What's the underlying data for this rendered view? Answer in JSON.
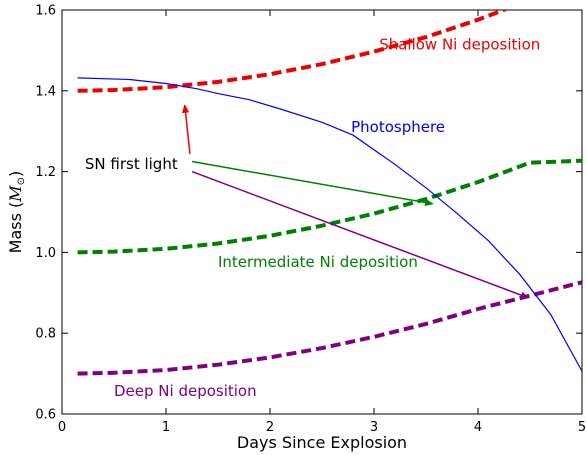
{
  "chart_data": {
    "type": "line",
    "xlabel": "Days Since Explosion",
    "ylabel_main": "Mass (",
    "ylabel_symbol": "M",
    "ylabel_sub": "⊙",
    "ylabel_close": ")",
    "xlim": [
      0,
      5
    ],
    "ylim": [
      0.6,
      1.6
    ],
    "x_ticks": [
      0,
      1,
      2,
      3,
      4,
      5
    ],
    "y_ticks": [
      0.6,
      0.8,
      1.0,
      1.2,
      1.4,
      1.6
    ],
    "x_tick_labels": [
      "0",
      "1",
      "2",
      "3",
      "4",
      "5"
    ],
    "y_tick_labels": [
      "0.6",
      "0.8",
      "1.0",
      "1.2",
      "1.4",
      "1.6"
    ],
    "grid": false,
    "series": [
      {
        "id": "shallow",
        "style": "dashed",
        "color": "#ee0000",
        "x": [
          0.15,
          0.5,
          1.0,
          1.5,
          2.0,
          2.5,
          3.0,
          3.5,
          4.0,
          4.5,
          5.0
        ],
        "y": [
          1.4,
          1.402,
          1.409,
          1.422,
          1.441,
          1.466,
          1.497,
          1.533,
          1.576,
          1.625,
          1.68
        ]
      },
      {
        "id": "intermediate",
        "style": "dashed",
        "color": "#008000",
        "x": [
          0.15,
          0.5,
          1.0,
          1.5,
          2.0,
          2.5,
          3.0,
          3.5,
          4.0,
          4.5,
          5.0
        ],
        "y": [
          1.0,
          1.002,
          1.009,
          1.022,
          1.041,
          1.066,
          1.096,
          1.132,
          1.174,
          1.222,
          1.227
        ]
      },
      {
        "id": "deep",
        "style": "dashed",
        "color": "#800080",
        "x": [
          0.15,
          0.5,
          1.0,
          1.5,
          2.0,
          2.5,
          3.0,
          3.5,
          4.0,
          4.5,
          5.0
        ],
        "y": [
          0.7,
          0.702,
          0.709,
          0.722,
          0.74,
          0.763,
          0.791,
          0.823,
          0.86,
          0.893,
          0.926
        ]
      },
      {
        "id": "photosphere",
        "style": "solid",
        "color": "#0000ff",
        "x": [
          0.15,
          0.65,
          1.0,
          1.3,
          1.5,
          1.8,
          2.1,
          2.5,
          2.8,
          3.2,
          3.5,
          3.8,
          4.1,
          4.4,
          4.7,
          5.0
        ],
        "y": [
          1.432,
          1.428,
          1.418,
          1.405,
          1.393,
          1.378,
          1.355,
          1.322,
          1.29,
          1.218,
          1.16,
          1.096,
          1.029,
          0.946,
          0.846,
          0.706
        ]
      }
    ],
    "annotations": [
      {
        "id": "shallow-label",
        "text": "Shallow Ni deposition",
        "color": "#ee0000",
        "x": 3.05,
        "y": 1.502
      },
      {
        "id": "photosphere-label",
        "text": "Photosphere",
        "color": "#0000ff",
        "x": 2.78,
        "y": 1.298
      },
      {
        "id": "first-light-label",
        "text": "SN first light",
        "color": "#000000",
        "x": 0.22,
        "y": 1.206
      },
      {
        "id": "intermediate-label",
        "text": "Intermediate Ni deposition",
        "color": "#008000",
        "x": 1.5,
        "y": 0.964
      },
      {
        "id": "deep-label",
        "text": "Deep Ni deposition",
        "color": "#800080",
        "x": 0.5,
        "y": 0.644
      }
    ],
    "arrows": [
      {
        "id": "arrow-red",
        "color": "#ee0000",
        "from": [
          1.23,
          1.244
        ],
        "to": [
          1.18,
          1.366
        ]
      },
      {
        "id": "arrow-green",
        "color": "#008000",
        "from": [
          1.25,
          1.225
        ],
        "to": [
          3.57,
          1.12
        ]
      },
      {
        "id": "arrow-purple",
        "color": "#800080",
        "from": [
          1.25,
          1.2
        ],
        "to": [
          4.49,
          0.887
        ]
      }
    ]
  }
}
